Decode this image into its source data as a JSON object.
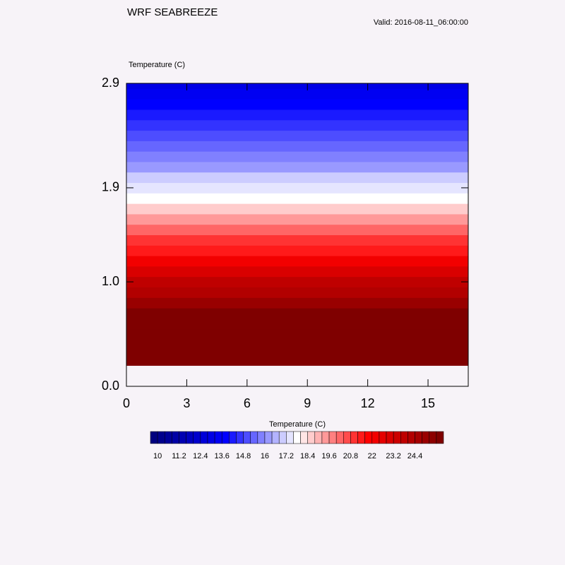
{
  "chart_data": {
    "type": "contour",
    "title": "WRF SEABREEZE",
    "subtitle": "Valid: 2016-08-11_06:00:00",
    "field_label": "Temperature   (C)",
    "xlim": [
      0,
      17
    ],
    "xticks": [
      0,
      3,
      6,
      9,
      12,
      15
    ],
    "ylim": [
      0,
      2.9
    ],
    "yticks": [
      {
        "value": 0,
        "label": "0.0"
      },
      {
        "value": 1,
        "label": "1.0"
      },
      1.9,
      2.9
    ],
    "z": [
      0.2,
      0.3,
      0.4,
      0.5,
      0.6,
      0.7,
      0.8,
      0.9,
      1.0,
      1.1,
      1.2,
      1.3,
      1.4,
      1.5,
      1.6,
      1.7,
      1.8,
      1.9,
      2.0,
      2.1,
      2.2,
      2.3,
      2.4,
      2.5,
      2.6,
      2.7,
      2.8,
      2.9
    ],
    "values": [
      29.3,
      28.6,
      27.9,
      27.2,
      26.5,
      25.8,
      25.0,
      24.3,
      23.6,
      22.9,
      22.2,
      21.5,
      20.8,
      20.0,
      19.3,
      18.6,
      17.9,
      17.2,
      16.8,
      16.3,
      15.9,
      15.4,
      15.0,
      14.6,
      14.1,
      13.7,
      13.2,
      12.8
    ],
    "colormap": [
      "#00007f",
      "#0000ff",
      "#ffffff",
      "#ff0000",
      "#7f0000"
    ],
    "colorbar": {
      "title": "Temperature  (C)",
      "levels": [
        10,
        10.4,
        10.8,
        11.2,
        11.6,
        12,
        12.4,
        12.8,
        13.2,
        13.6,
        14,
        14.4,
        14.8,
        15.2,
        15.6,
        16,
        16.4,
        16.8,
        17.2,
        17.6,
        18,
        18.4,
        18.8,
        19.2,
        19.6,
        20,
        20.4,
        20.8,
        21.2,
        21.6,
        22,
        22.4,
        22.8,
        23.2,
        23.6,
        24,
        24.4,
        24.8,
        25.2,
        25.6
      ],
      "labels": [
        10,
        11.2,
        12.4,
        13.6,
        14.8,
        16,
        17.2,
        18.4,
        19.6,
        20.8,
        22,
        23.2,
        24.4
      ]
    }
  }
}
